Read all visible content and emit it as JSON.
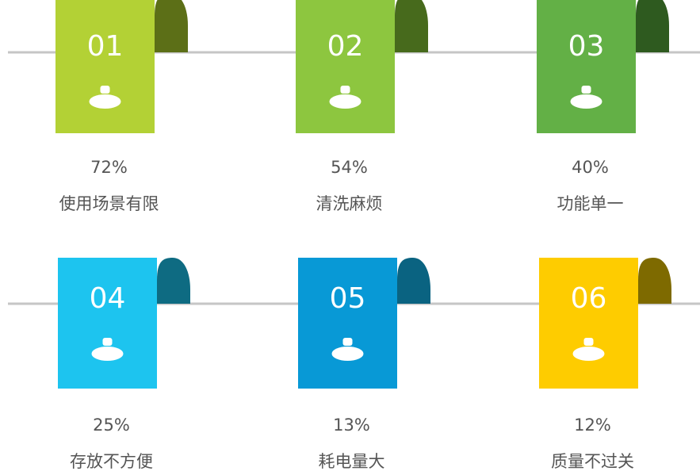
{
  "items": [
    {
      "number": "01",
      "percent": "72%",
      "label": "使用场景有限"
    },
    {
      "number": "02",
      "percent": "54%",
      "label": "清洗麻烦"
    },
    {
      "number": "03",
      "percent": "40%",
      "label": "功能单一"
    },
    {
      "number": "04",
      "percent": "25%",
      "label": "存放不方便"
    },
    {
      "number": "05",
      "percent": "13%",
      "label": "耗电量大"
    },
    {
      "number": "06",
      "percent": "12%",
      "label": "质量不过关"
    }
  ]
}
